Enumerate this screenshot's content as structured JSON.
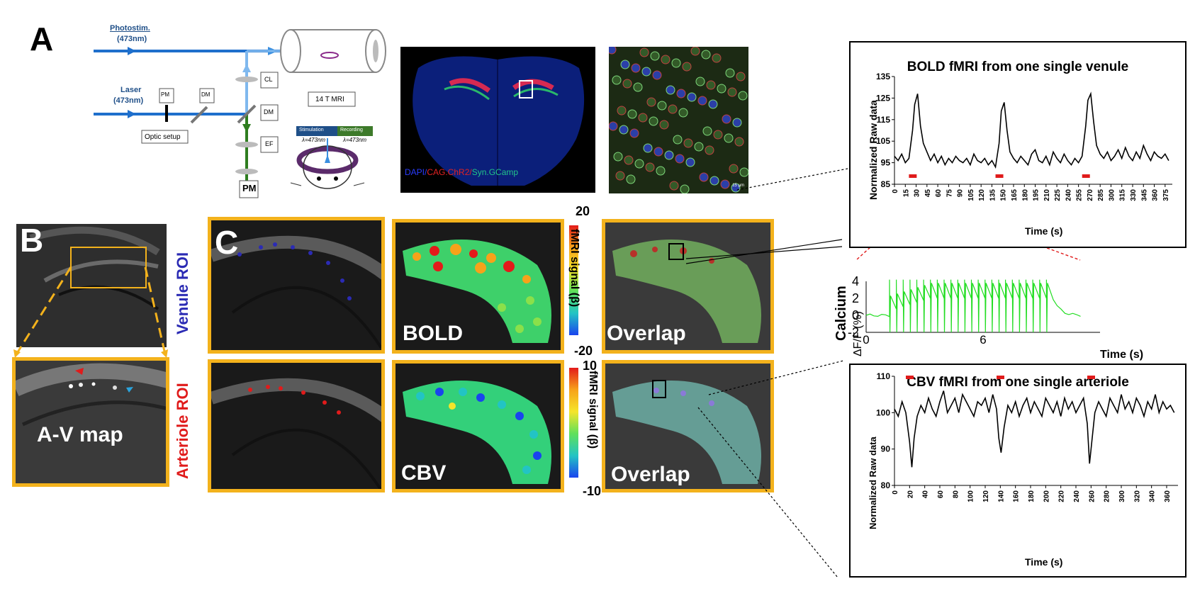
{
  "panels": {
    "A": "A",
    "B": "B",
    "C": "C"
  },
  "optics": {
    "photostim": "Photostim.",
    "photostim_wl": "(473nm)",
    "laser": "Laser",
    "laser_wl": "(473nm)",
    "pm_small": "PM",
    "dm_small": "DM",
    "optic_setup": "Optic setup",
    "cl": "CL",
    "dm": "DM",
    "ef": "EF",
    "pm": "PM",
    "mri": "14 T MRI",
    "stimulation": "Stimulation",
    "recording": "Recording",
    "stim_wl": "λ=473nm",
    "rec_wl": "λ=473nm"
  },
  "histology": {
    "dapi": "DAPI/",
    "chr2": "CAG.ChR2/",
    "gcamp": "Syn.GCamp",
    "scale": "15 µm",
    "colors": {
      "dapi": "#2a3cff",
      "chr2": "#e32222",
      "gcamp": "#22c48a"
    }
  },
  "panel_b": {
    "av_map": "A-V map"
  },
  "panel_c": {
    "venule_roi": "Venule ROI",
    "arteriole_roi": "Arteriole ROI",
    "bold": "BOLD",
    "cbv": "CBV",
    "overlap1": "Overlap",
    "overlap2": "Overlap",
    "cb1_max": "20",
    "cb1_min": "-20",
    "cb2_max": "10",
    "cb2_min": "-10",
    "cb_label": "fMRI signal (β)",
    "colors": {
      "venule": "#2b2bb4",
      "arteriole": "#e01b1b",
      "frame": "#f3b21c"
    }
  },
  "calcium": {
    "label": "Calcium",
    "ylabel": "ΔF/F (%)",
    "xlabel": "Time (s)",
    "color": "#22dd22"
  },
  "chart_data": [
    {
      "type": "line",
      "title": "BOLD fMRI from one single venule",
      "xlabel": "Time (s)",
      "ylabel": "Normalized Raw data",
      "ylim": [
        85,
        135
      ],
      "yticks": [
        "85",
        "95",
        "105",
        "115",
        "125",
        "135"
      ],
      "xticks": [
        "0",
        "15",
        "30",
        "45",
        "60",
        "75",
        "90",
        "105",
        "120",
        "135",
        "150",
        "165",
        "180",
        "195",
        "210",
        "225",
        "240",
        "255",
        "270",
        "285",
        "300",
        "315",
        "330",
        "345",
        "360",
        "375"
      ],
      "xlim": [
        0,
        385
      ],
      "stim_onsets": [
        20,
        140,
        260
      ],
      "x": [
        0,
        5,
        10,
        15,
        20,
        25,
        28,
        32,
        36,
        40,
        45,
        50,
        55,
        60,
        65,
        70,
        75,
        80,
        85,
        90,
        95,
        100,
        105,
        110,
        115,
        120,
        125,
        130,
        135,
        140,
        145,
        148,
        152,
        156,
        160,
        165,
        170,
        175,
        180,
        185,
        190,
        195,
        200,
        205,
        210,
        215,
        220,
        225,
        230,
        235,
        240,
        245,
        250,
        255,
        260,
        265,
        268,
        272,
        276,
        280,
        285,
        290,
        295,
        300,
        305,
        310,
        315,
        320,
        325,
        330,
        335,
        340,
        345,
        350,
        355,
        360,
        365,
        370,
        375,
        380
      ],
      "y": [
        98,
        96,
        99,
        95,
        97,
        110,
        122,
        127,
        112,
        104,
        100,
        96,
        99,
        95,
        98,
        94,
        97,
        95,
        98,
        96,
        95,
        97,
        94,
        99,
        96,
        95,
        97,
        94,
        96,
        93,
        104,
        119,
        123,
        110,
        100,
        97,
        95,
        98,
        96,
        94,
        99,
        101,
        96,
        95,
        98,
        94,
        100,
        97,
        95,
        99,
        96,
        94,
        97,
        95,
        98,
        112,
        124,
        127,
        114,
        103,
        99,
        97,
        100,
        96,
        98,
        101,
        97,
        102,
        98,
        96,
        100,
        97,
        103,
        99,
        96,
        100,
        98,
        97,
        99,
        96
      ]
    },
    {
      "type": "line",
      "title": "CBV fMRI from one single arteriole",
      "xlabel": "Time (s)",
      "ylabel": "Normalized Raw data",
      "ylim": [
        80,
        110
      ],
      "yticks": [
        "80",
        "90",
        "100",
        "110"
      ],
      "xticks": [
        "0",
        "20",
        "40",
        "60",
        "80",
        "100",
        "120",
        "140",
        "160",
        "180",
        "200",
        "220",
        "240",
        "260",
        "280",
        "300",
        "320",
        "340",
        "360"
      ],
      "xlim": [
        0,
        375
      ],
      "stim_onsets": [
        15,
        135,
        255
      ],
      "x": [
        0,
        5,
        10,
        15,
        20,
        23,
        26,
        30,
        35,
        40,
        45,
        50,
        55,
        60,
        65,
        70,
        75,
        80,
        85,
        90,
        95,
        100,
        105,
        110,
        115,
        120,
        125,
        130,
        135,
        138,
        141,
        145,
        150,
        155,
        160,
        165,
        170,
        175,
        180,
        185,
        190,
        195,
        200,
        205,
        210,
        215,
        220,
        225,
        230,
        235,
        240,
        245,
        250,
        255,
        258,
        261,
        265,
        270,
        275,
        280,
        285,
        290,
        295,
        300,
        305,
        310,
        315,
        320,
        325,
        330,
        335,
        340,
        345,
        350,
        355,
        360,
        365,
        370
      ],
      "y": [
        101,
        99,
        103,
        100,
        92,
        85,
        93,
        99,
        102,
        100,
        104,
        101,
        99,
        103,
        106,
        100,
        102,
        104,
        100,
        105,
        103,
        101,
        99,
        103,
        102,
        104,
        100,
        105,
        101,
        93,
        89,
        96,
        102,
        100,
        103,
        99,
        102,
        104,
        100,
        103,
        101,
        99,
        104,
        102,
        100,
        103,
        99,
        104,
        101,
        103,
        100,
        102,
        104,
        97,
        86,
        92,
        100,
        103,
        101,
        99,
        104,
        102,
        100,
        105,
        101,
        103,
        100,
        104,
        102,
        99,
        103,
        101,
        105,
        100,
        103,
        101,
        102,
        100
      ]
    },
    {
      "type": "line",
      "title": "Calcium",
      "xlabel": "Time (s)",
      "ylabel": "ΔF/F (%)",
      "yticks": [
        "-2",
        "0",
        "2",
        "4"
      ],
      "xticks": [
        "0",
        "6"
      ],
      "ylim": [
        -2,
        4
      ],
      "xlim": [
        0,
        12
      ],
      "pulses": 24,
      "stim_start": 1.2,
      "stim_end": 9.6
    }
  ]
}
